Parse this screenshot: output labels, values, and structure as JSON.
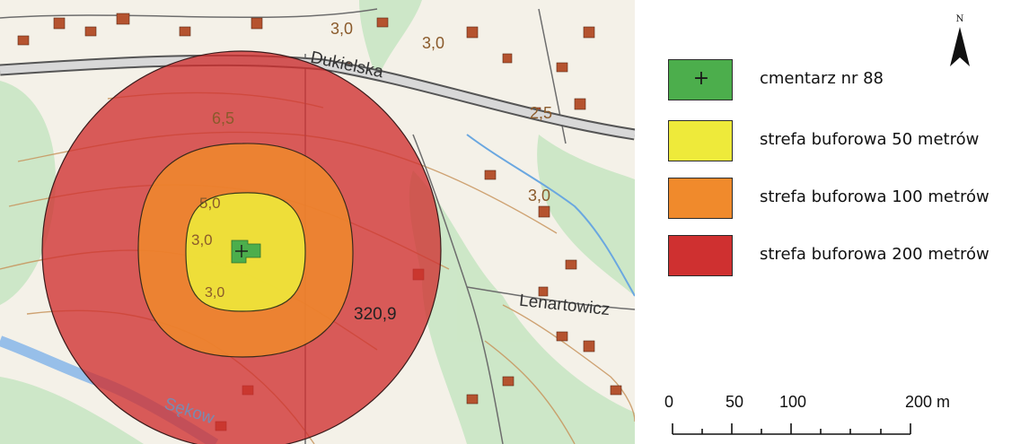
{
  "map": {
    "street_labels": [
      "Dukielska",
      "Lenartowicz",
      "Sękow"
    ],
    "elevation_labels": [
      "3,0",
      "3,0",
      "6,5",
      "2,5",
      "3,0",
      "5,0",
      "3,0",
      "3,0",
      "320,9"
    ],
    "marker_symbol": "+",
    "colors": {
      "cemetery": "#4cae4c",
      "buffer_50": "#eeea3a",
      "buffer_100": "#f08a2c",
      "buffer_200": "#cf3030"
    }
  },
  "legend": {
    "items": [
      {
        "label": "cmentarz nr 88",
        "color": "#4cae4c",
        "symbol": "+"
      },
      {
        "label": "strefa buforowa 50 metrów",
        "color": "#eeea3a"
      },
      {
        "label": "strefa buforowa 100 metrów",
        "color": "#f08a2c"
      },
      {
        "label": "strefa buforowa 200 metrów",
        "color": "#cf3030"
      }
    ]
  },
  "north_arrow": {
    "letter": "N"
  },
  "scale_bar": {
    "labels": [
      "0",
      "50",
      "100",
      "200 m"
    ]
  }
}
